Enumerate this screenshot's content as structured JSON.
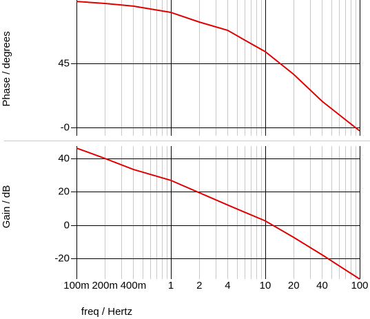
{
  "chart_data": [
    {
      "type": "line",
      "ylabel": "Phase / degrees",
      "xlog": true,
      "xlim": [
        0.1,
        100
      ],
      "ylim": [
        -5.8,
        89.5
      ],
      "yticks": [
        {
          "value": 0,
          "label": "-0"
        },
        45
      ],
      "x": [
        0.1,
        0.2,
        0.4,
        1,
        2,
        4,
        6,
        10,
        20,
        40,
        100
      ],
      "series": [
        {
          "color": "#e00000",
          "values": [
            88.5,
            87.1,
            85.2,
            80.8,
            74,
            68.2,
            61.5,
            53.2,
            37.3,
            18.4,
            -2.4
          ]
        }
      ]
    },
    {
      "type": "line",
      "ylabel": "Gain / dB",
      "xlabel": "freq / Hertz",
      "xlog": true,
      "xlim": [
        0.1,
        100
      ],
      "ylim": [
        -32.4,
        47.4
      ],
      "yticks": [
        -20,
        0,
        20,
        40
      ],
      "xticks": [
        {
          "value": 0.1,
          "label": "100m"
        },
        {
          "value": 0.2,
          "label": "200m"
        },
        {
          "value": 0.4,
          "label": "400m"
        },
        1,
        2,
        4,
        10,
        20,
        40,
        100
      ],
      "x": [
        0.1,
        0.2,
        0.4,
        1,
        2,
        4,
        6,
        10,
        20,
        40,
        100
      ],
      "series": [
        {
          "color": "#e00000",
          "values": [
            46.2,
            40,
            33.4,
            26.8,
            19.4,
            12,
            7.8,
            2.5,
            -7.4,
            -17.9,
            -32.4
          ]
        }
      ]
    }
  ]
}
